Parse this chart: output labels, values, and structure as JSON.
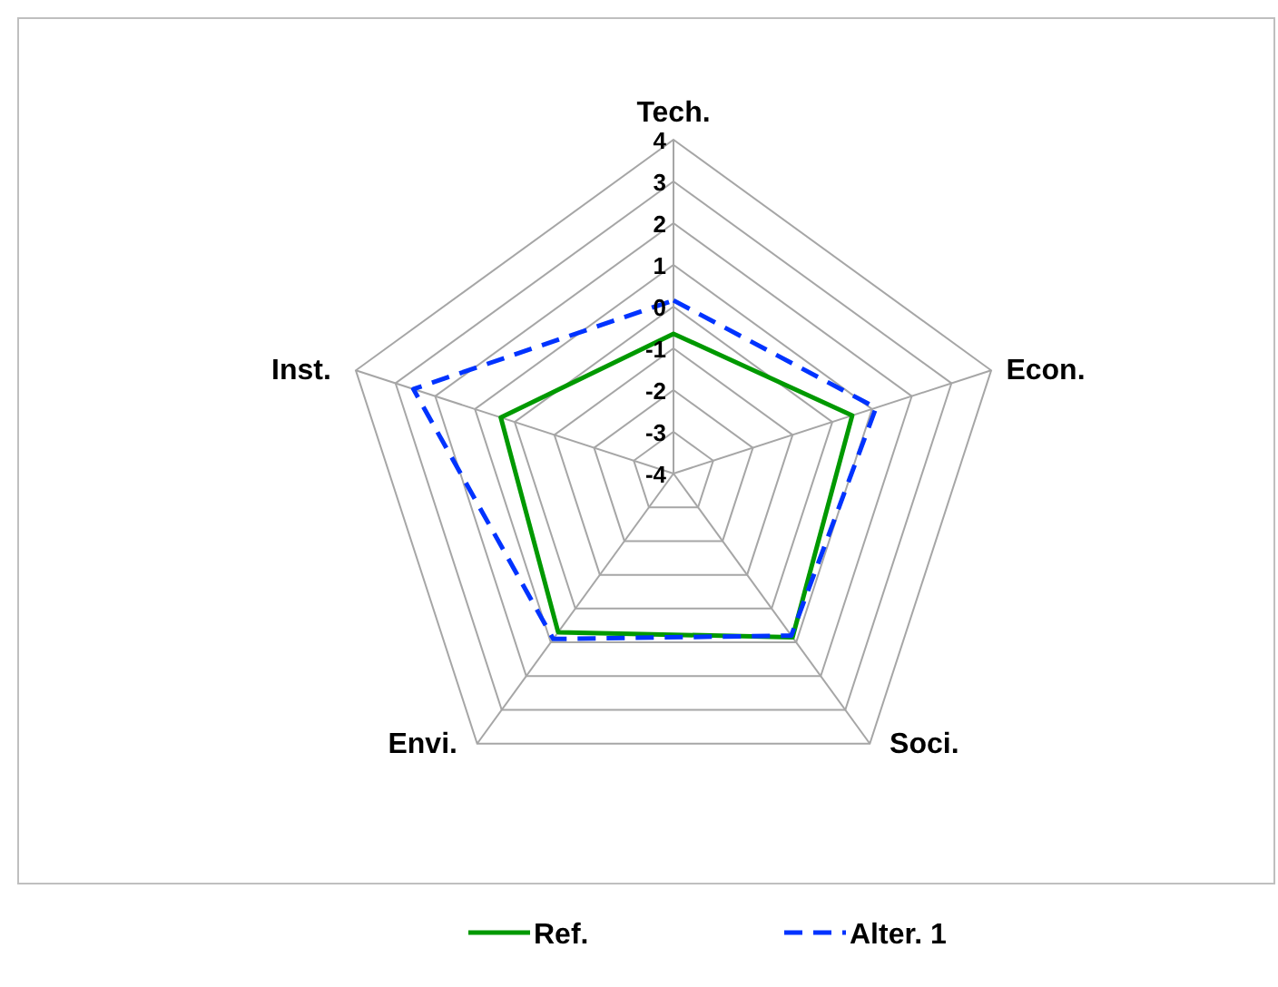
{
  "chart_data": {
    "type": "radar",
    "categories": [
      "Tech.",
      "Econ.",
      "Soci.",
      "Envi.",
      "Inst."
    ],
    "ylim": [
      -4,
      4
    ],
    "yticks": [
      -4,
      -3,
      -2,
      -1,
      0,
      1,
      2,
      3,
      4
    ],
    "legend": "bottom",
    "series": [
      {
        "name": "Ref.",
        "color": "#009900",
        "values": [
          -0.65,
          0.5,
          0.85,
          0.7,
          0.35
        ],
        "line_style": "solid"
      },
      {
        "name": "Alter. 1",
        "color": "#0033ff",
        "values": [
          0.15,
          1.1,
          0.8,
          0.9,
          2.55
        ],
        "line_style": "dashed"
      }
    ]
  }
}
